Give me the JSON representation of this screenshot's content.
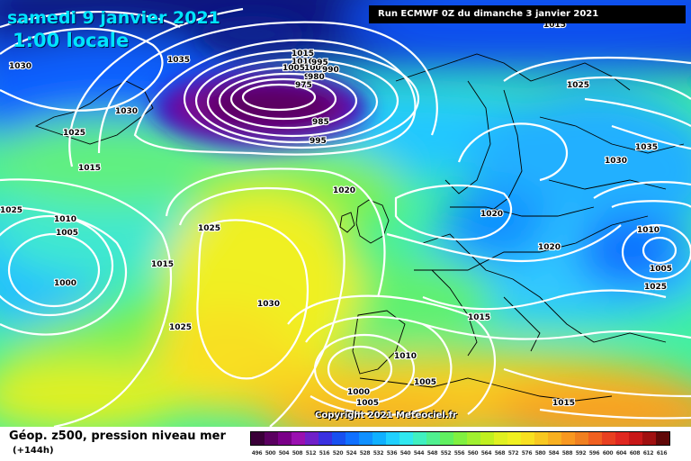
{
  "header": {
    "date": "samedi 9 janvier 2021",
    "time": "1:00 locale",
    "run": "Run ECMWF 0Z du dimanche 3 janvier 2021"
  },
  "copyright": "Copyright 2021 Meteociel.fr",
  "legend": {
    "title": "Géop. z500, pression niveau mer",
    "subtitle": "(+144h)",
    "scale_labels": [
      "496",
      "500",
      "504",
      "508",
      "512",
      "516",
      "520",
      "524",
      "528",
      "532",
      "536",
      "540",
      "544",
      "548",
      "552",
      "556",
      "560",
      "564",
      "568",
      "572",
      "576",
      "580",
      "584",
      "588",
      "592",
      "596",
      "600",
      "604",
      "608",
      "612",
      "616"
    ],
    "scale_colors": [
      "#3a0038",
      "#5a0060",
      "#7a0088",
      "#9a10b0",
      "#7020c8",
      "#3a30e0",
      "#1850f0",
      "#1070ff",
      "#1090ff",
      "#10b0ff",
      "#20d0ff",
      "#30e8f0",
      "#40f0c0",
      "#50f090",
      "#60f060",
      "#80f040",
      "#a0f030",
      "#c0f020",
      "#e0f020",
      "#f0f020",
      "#f8e020",
      "#f8c820",
      "#f8b020",
      "#f89820",
      "#f08020",
      "#f06020",
      "#e84020",
      "#e02820",
      "#c81818",
      "#a01010",
      "#600808"
    ]
  },
  "isobar_labels": [
    {
      "text": "1035",
      "name": "isobar-label-1035"
    },
    {
      "text": "1030",
      "name": "isobar-label-1030"
    },
    {
      "text": "1030",
      "name": "isobar-label-1030"
    },
    {
      "text": "1025",
      "name": "isobar-label-1025"
    },
    {
      "text": "1015",
      "name": "isobar-label-1015"
    },
    {
      "text": "1015",
      "name": "isobar-label-1015"
    },
    {
      "text": "1010",
      "name": "isobar-label-1010"
    },
    {
      "text": "1005",
      "name": "isobar-label-1005"
    },
    {
      "text": "1000",
      "name": "isobar-label-1000"
    },
    {
      "text": "995",
      "name": "isobar-label-995"
    },
    {
      "text": "990",
      "name": "isobar-label-990"
    },
    {
      "text": "985",
      "name": "isobar-label-985"
    },
    {
      "text": "980",
      "name": "isobar-label-980"
    },
    {
      "text": "975",
      "name": "isobar-label-975"
    },
    {
      "text": "985",
      "name": "isobar-label-985"
    },
    {
      "text": "995",
      "name": "isobar-label-995"
    },
    {
      "text": "1025",
      "name": "isobar-label-1025"
    },
    {
      "text": "1010",
      "name": "isobar-label-1010"
    },
    {
      "text": "1005",
      "name": "isobar-label-1005"
    },
    {
      "text": "1000",
      "name": "isobar-label-1000"
    },
    {
      "text": "1015",
      "name": "isobar-label-1015"
    },
    {
      "text": "1025",
      "name": "isobar-label-1025"
    },
    {
      "text": "1030",
      "name": "isobar-label-1030"
    },
    {
      "text": "1025",
      "name": "isobar-label-1025"
    },
    {
      "text": "1020",
      "name": "isobar-label-1020"
    },
    {
      "text": "1020",
      "name": "isobar-label-1020"
    },
    {
      "text": "1020",
      "name": "isobar-label-1020"
    },
    {
      "text": "1015",
      "name": "isobar-label-1015"
    },
    {
      "text": "1010",
      "name": "isobar-label-1010"
    },
    {
      "text": "1005",
      "name": "isobar-label-1005"
    },
    {
      "text": "1000",
      "name": "isobar-label-1000"
    },
    {
      "text": "1005",
      "name": "isobar-label-1005"
    },
    {
      "text": "1015",
      "name": "isobar-label-1015"
    },
    {
      "text": "1025",
      "name": "isobar-label-1025"
    },
    {
      "text": "1035",
      "name": "isobar-label-1035"
    },
    {
      "text": "1030",
      "name": "isobar-label-1030"
    },
    {
      "text": "1010",
      "name": "isobar-label-1010"
    },
    {
      "text": "1005",
      "name": "isobar-label-1005"
    },
    {
      "text": "1015",
      "name": "isobar-label-1015"
    },
    {
      "text": "1025",
      "name": "isobar-label-1025"
    },
    {
      "text": "1010",
      "name": "isobar-label-1010"
    }
  ]
}
